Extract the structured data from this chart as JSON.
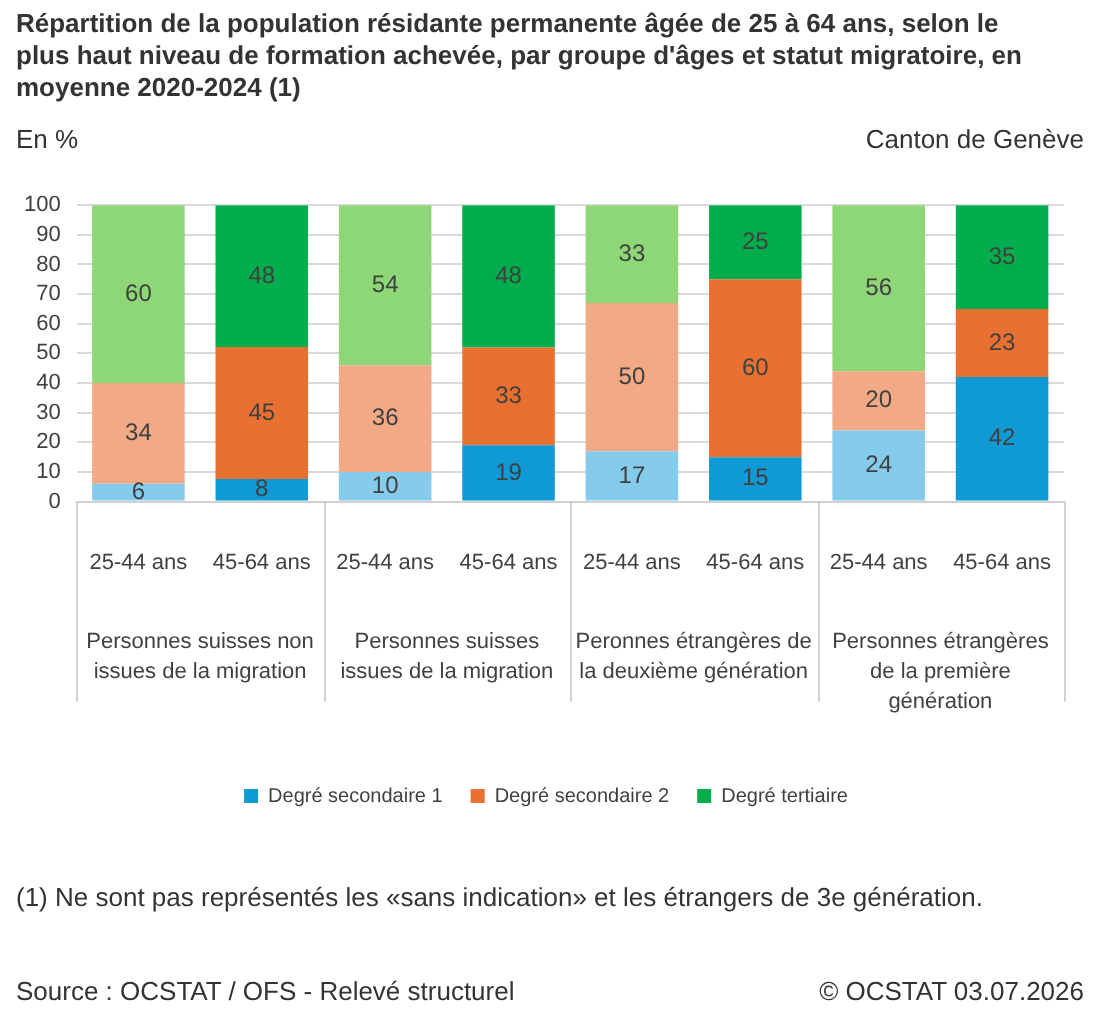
{
  "chart_data": {
    "type": "bar",
    "title": "Répartition de la population résidante permanente âgée de 25 à 64 ans, selon le plus haut niveau de formation achevée, par groupe d'âges et statut migratoire, en moyenne 2020-2024 (1)",
    "subtitle": "Canton de Genève",
    "ylabel": "En %",
    "categories": [
      "25-44 ans",
      "45-64 ans",
      "25-44 ans",
      "45-64 ans",
      "25-44 ans",
      "45-64 ans",
      "25-44 ans",
      "45-64 ans"
    ],
    "series": [
      {
        "name": "Degré secondaire 1",
        "color": "#0f9ad6",
        "colors": [
          "#85cbec",
          "#0f9ad6",
          "#85cbec",
          "#0f9ad6",
          "#85cbec",
          "#0f9ad6",
          "#85cbec",
          "#0f9ad6"
        ],
        "values": [
          6,
          7.6,
          10,
          19,
          17,
          15,
          24,
          42
        ],
        "value_labels": [
          "6",
          "8",
          "10",
          "19",
          "17",
          "15",
          "24",
          "42"
        ]
      },
      {
        "name": "Degré secondaire 2",
        "color": "#e87131",
        "colors": [
          "#f2a985",
          "#e87131",
          "#f2a985",
          "#e87131",
          "#f2a985",
          "#e87131",
          "#f2a985",
          "#e87131"
        ],
        "values": [
          34,
          44.6,
          36,
          33,
          50,
          60,
          20,
          23
        ],
        "value_labels": [
          "34",
          "45",
          "36",
          "33",
          "50",
          "60",
          "20",
          "23"
        ]
      },
      {
        "name": "Degré tertiaire",
        "color": "#00ad4c",
        "colors": [
          "#8dd777",
          "#00ad4c",
          "#8dd777",
          "#00ad4c",
          "#8dd777",
          "#00ad4c",
          "#8dd777",
          "#00ad4c"
        ],
        "values": [
          60,
          47.8,
          54,
          48,
          33,
          25,
          56,
          35
        ],
        "value_labels": [
          "60",
          "48",
          "54",
          "48",
          "33",
          "25",
          "56",
          "35"
        ]
      }
    ],
    "stacked": true,
    "ylim": [
      0,
      100
    ],
    "yticks": [
      0,
      10,
      20,
      30,
      40,
      50,
      60,
      70,
      80,
      90,
      100
    ],
    "grid": "y",
    "legend": "bottom",
    "annotations": [
      "Personnes suisses non issues de la migration",
      "Personnes suisses issues de la migration",
      "Peronnes étrangères de la deuxième génération",
      "Personnes étrangères de la première génération",
      "(1) Ne sont pas représentés les «sans indication» et les étrangers de 3e génération.",
      "Source : OCSTAT / OFS - Relevé structurel",
      "© OCSTAT 03.07.2026"
    ]
  }
}
